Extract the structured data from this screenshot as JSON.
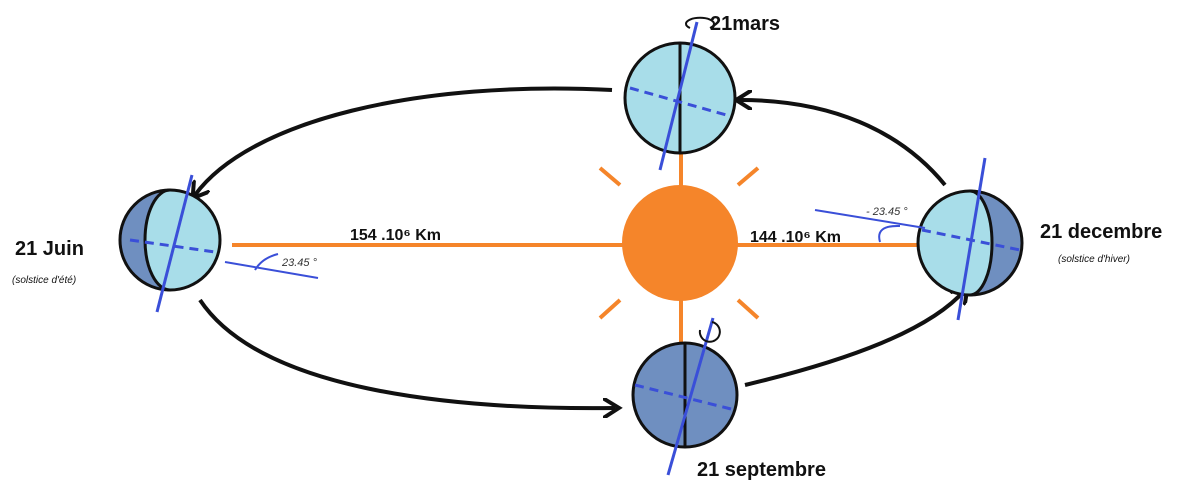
{
  "labels": {
    "march": "21mars",
    "june": "21 Juin",
    "june_note": "(solstice d'été)",
    "december": "21 decembre",
    "december_note": "(solstice d'hiver)",
    "september": "21 septembre",
    "distance_far": "154 .10⁶ Km",
    "distance_near": "144 .10⁶ Km",
    "angle_june": "23.45 °",
    "angle_december": "- 23.45 °"
  }
}
